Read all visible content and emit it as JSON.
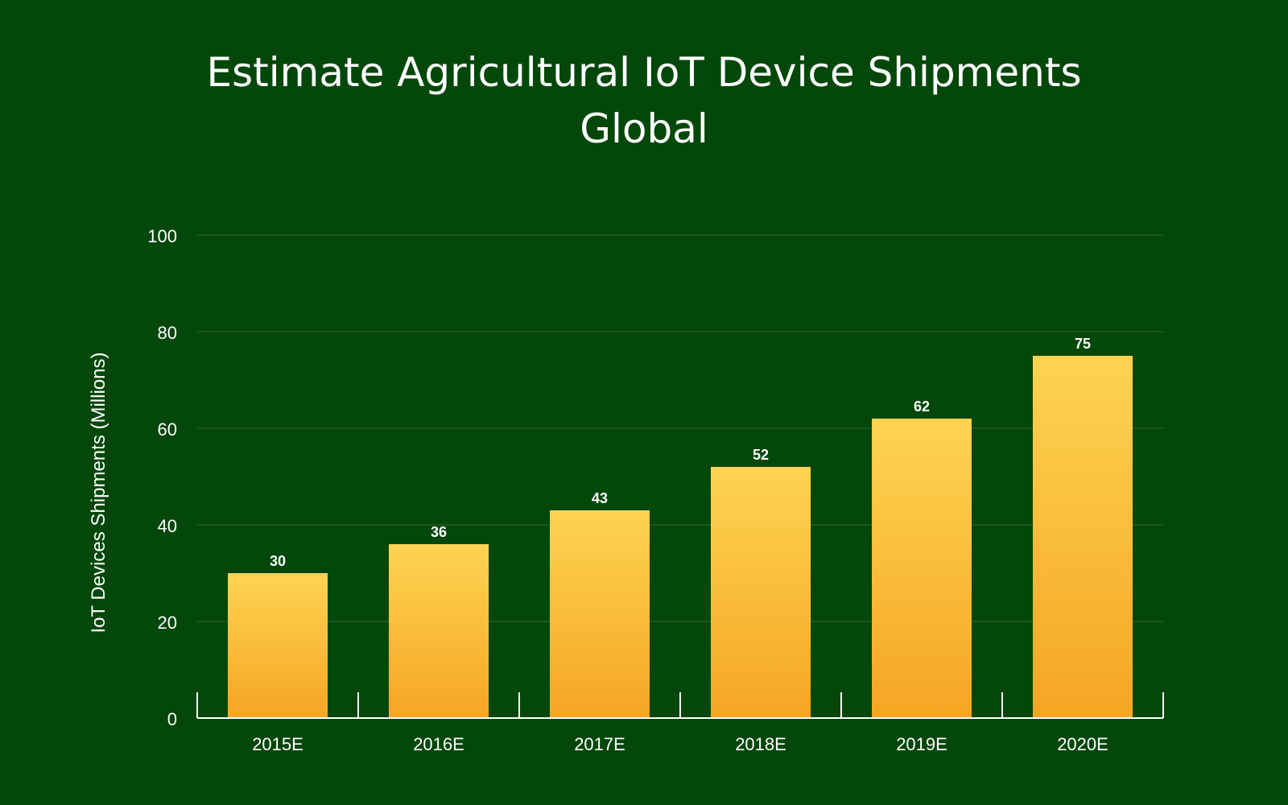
{
  "chart_data": {
    "type": "bar",
    "title": "Estimate Agricultural IoT Device Shipments",
    "subtitle": "Global",
    "xlabel": "",
    "ylabel": "IoT Devices Shipments (Millions)",
    "categories": [
      "2015E",
      "2016E",
      "2017E",
      "2018E",
      "2019E",
      "2020E"
    ],
    "values": [
      30,
      36,
      43,
      52,
      62,
      75
    ],
    "data_labels": [
      "30",
      "36",
      "43",
      "52",
      "62",
      "75"
    ],
    "ylim": [
      0,
      100
    ],
    "yticks": [
      0,
      20,
      40,
      60,
      80,
      100
    ],
    "grid": true,
    "legend": "none",
    "colors": {
      "background": "#04470a",
      "bar_top": "#fdd452",
      "bar_bottom": "#f5a623",
      "grid": "#1f5e24",
      "axis": "#ffffff",
      "text": "#ffffff"
    }
  }
}
